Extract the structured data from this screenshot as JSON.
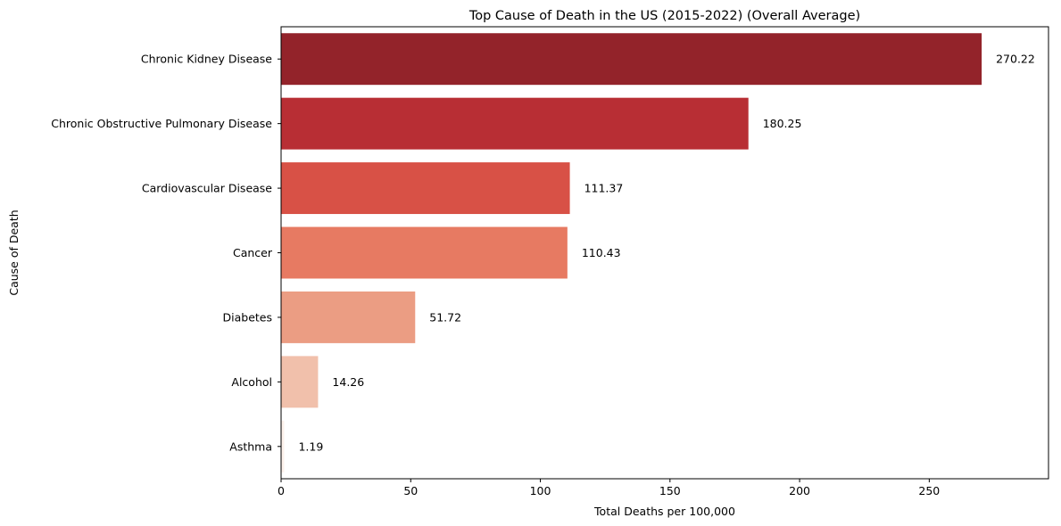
{
  "chart_data": {
    "type": "bar",
    "orientation": "horizontal",
    "title": "Top Cause of Death in the US (2015-2022) (Overall Average)",
    "xlabel": "Total Deaths per 100,000",
    "ylabel": "Cause of Death",
    "categories": [
      "Chronic Kidney Disease",
      "Chronic Obstructive Pulmonary Disease",
      "Cardiovascular Disease",
      "Cancer",
      "Diabetes",
      "Alcohol",
      "Asthma"
    ],
    "values": [
      270.22,
      180.25,
      111.37,
      110.43,
      51.72,
      14.26,
      1.19
    ],
    "value_labels": [
      "270.22",
      "180.25",
      "111.37",
      "110.43",
      "51.72",
      "14.26",
      "1.19"
    ],
    "colors": [
      "#93232a",
      "#b82e34",
      "#d85146",
      "#e77a62",
      "#eb9d83",
      "#f1c0ab",
      "#fdf2ec"
    ],
    "xlim": [
      0,
      296
    ],
    "xticks": [
      0,
      50,
      100,
      150,
      200,
      250
    ],
    "xtick_labels": [
      "0",
      "50",
      "100",
      "150",
      "200",
      "250"
    ],
    "grid": false,
    "legend": false
  }
}
